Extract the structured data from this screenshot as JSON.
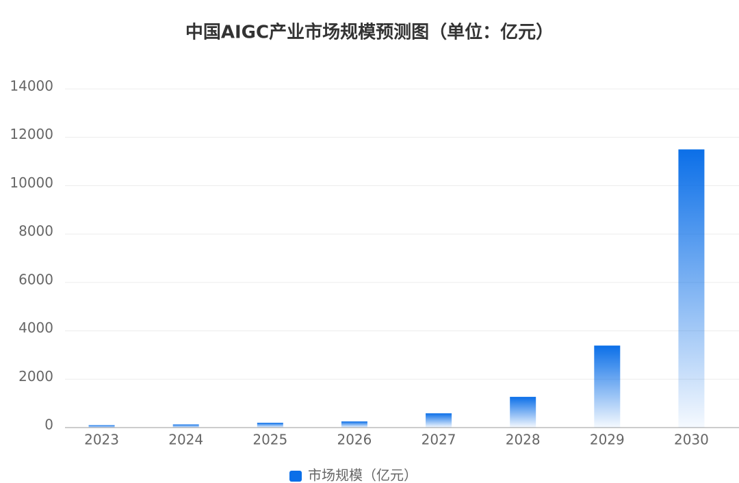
{
  "chart_data": {
    "type": "bar",
    "title": "中国AIGC产业市场规模预测图（单位：亿元）",
    "categories": [
      "2023",
      "2024",
      "2025",
      "2026",
      "2027",
      "2028",
      "2029",
      "2030"
    ],
    "series": [
      {
        "name": "市场规模（亿元）",
        "color": "#0b6fe8",
        "values": [
          100,
          130,
          200,
          255,
          590,
          1270,
          3390,
          11500
        ]
      }
    ],
    "ylim": [
      0,
      14000
    ],
    "yticks": [
      0,
      2000,
      4000,
      6000,
      8000,
      10000,
      12000,
      14000
    ],
    "grid": true,
    "legend": "bottom"
  }
}
